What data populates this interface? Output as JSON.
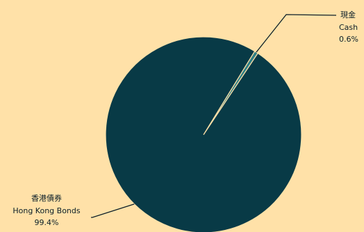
{
  "chart_data": {
    "type": "pie",
    "title": "",
    "slices": [
      {
        "label_zh": "現金",
        "label_en": "Cash",
        "value": 0.6,
        "value_label": "0.6%",
        "color": "#2E7F86"
      },
      {
        "label_zh": "香港債券",
        "label_en": "Hong Kong Bonds",
        "value": 99.4,
        "value_label": "99.4%",
        "color": "#083A46"
      }
    ],
    "slice_border_color": "#FFE1A8",
    "legend": "none",
    "labels_position": "outside-with-leader-lines"
  },
  "background_color": "#FFE1A8"
}
